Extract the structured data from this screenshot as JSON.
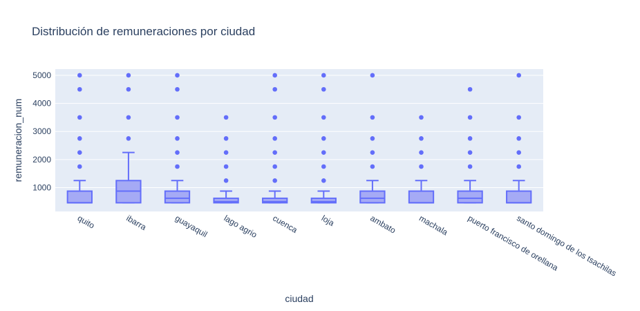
{
  "chart_data": {
    "type": "box",
    "title": "Distribución de remuneraciones por ciudad",
    "xlabel": "ciudad",
    "ylabel": "remuneracion_num",
    "ylim": [
      150,
      5220
    ],
    "yticks": [
      1000,
      2000,
      3000,
      4000,
      5000
    ],
    "grid": true,
    "colors": {
      "box_line": "#636efa",
      "box_fill": "#a5aaf5",
      "plot_bg": "#e5ecf6",
      "grid": "#ffffff",
      "text": "#2a3f5f"
    },
    "categories": [
      "quito",
      "ibarra",
      "guayaquil",
      "lago agrio",
      "cuenca",
      "loja",
      "ambato",
      "machala",
      "puerto francisco de orellana",
      "santo domingo de los tsachilas"
    ],
    "boxes": [
      {
        "min": 460,
        "q1": 460,
        "median": 460,
        "q3": 875,
        "max": 1250,
        "outliers": [
          1750,
          2250,
          2750,
          3500,
          4500,
          5000
        ]
      },
      {
        "min": 460,
        "q1": 460,
        "median": 875,
        "q3": 1250,
        "max": 2250,
        "outliers": [
          2750,
          3500,
          4500,
          5000
        ]
      },
      {
        "min": 460,
        "q1": 460,
        "median": 620,
        "q3": 875,
        "max": 1250,
        "outliers": [
          1750,
          2250,
          2750,
          3500,
          4500,
          5000
        ]
      },
      {
        "min": 460,
        "q1": 460,
        "median": 500,
        "q3": 620,
        "max": 875,
        "outliers": [
          1250,
          1750,
          2250,
          2750,
          3500
        ]
      },
      {
        "min": 460,
        "q1": 460,
        "median": 500,
        "q3": 620,
        "max": 875,
        "outliers": [
          1250,
          1750,
          2250,
          2750,
          3500,
          4500,
          5000
        ]
      },
      {
        "min": 460,
        "q1": 460,
        "median": 500,
        "q3": 620,
        "max": 875,
        "outliers": [
          1250,
          1750,
          2250,
          2750,
          3500,
          4500,
          5000
        ]
      },
      {
        "min": 460,
        "q1": 460,
        "median": 620,
        "q3": 875,
        "max": 1250,
        "outliers": [
          1750,
          2250,
          2750,
          3500,
          5000
        ]
      },
      {
        "min": 460,
        "q1": 460,
        "median": 460,
        "q3": 875,
        "max": 1250,
        "outliers": [
          1750,
          2250,
          2750,
          3500
        ]
      },
      {
        "min": 460,
        "q1": 460,
        "median": 620,
        "q3": 875,
        "max": 1250,
        "outliers": [
          1750,
          2250,
          2750,
          3500,
          4500
        ]
      },
      {
        "min": 460,
        "q1": 460,
        "median": 460,
        "q3": 875,
        "max": 1250,
        "outliers": [
          1750,
          2250,
          2750,
          3500,
          5000
        ]
      }
    ]
  }
}
